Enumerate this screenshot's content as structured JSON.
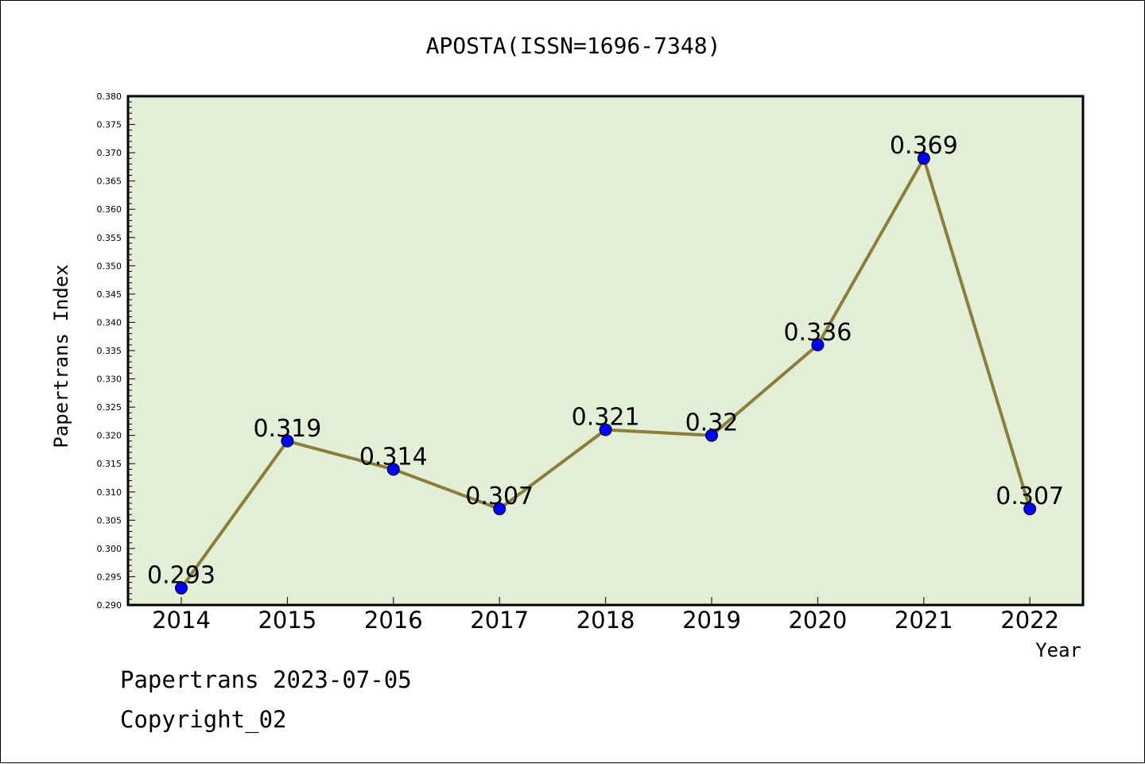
{
  "chart_data": {
    "type": "line",
    "title": "APOSTA(ISSN=1696-7348)",
    "xlabel": "Year",
    "ylabel": "Papertrans Index",
    "categories": [
      "2014",
      "2015",
      "2016",
      "2017",
      "2018",
      "2019",
      "2020",
      "2021",
      "2022"
    ],
    "values": [
      0.293,
      0.319,
      0.314,
      0.307,
      0.321,
      0.32,
      0.336,
      0.369,
      0.307
    ],
    "data_labels": [
      "0.293",
      "0.319",
      "0.314",
      "0.307",
      "0.321",
      "0.32",
      "0.336",
      "0.369",
      "0.307"
    ],
    "ylim": [
      0.29,
      0.38
    ],
    "yticks": [
      "0.290",
      "0.295",
      "0.300",
      "0.305",
      "0.310",
      "0.315",
      "0.320",
      "0.325",
      "0.330",
      "0.335",
      "0.340",
      "0.345",
      "0.350",
      "0.355",
      "0.360",
      "0.365",
      "0.370",
      "0.375",
      "0.380"
    ],
    "grid": false,
    "colors": {
      "plot_background": "#e2efd6",
      "line": "#8b7e3a",
      "marker": "#0000ff"
    }
  },
  "footer": {
    "line1": "Papertrans 2023-07-05",
    "line2": "Copyright_02"
  }
}
